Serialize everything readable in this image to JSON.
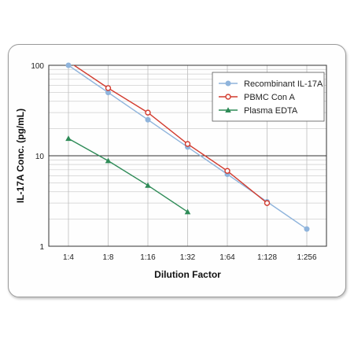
{
  "chart_data": {
    "type": "line",
    "title": "",
    "xlabel": "Dilution Factor",
    "ylabel": "IL-17A Conc. (pg/mL)",
    "x_scale": "log2",
    "y_scale": "log10",
    "categories": [
      "1:4",
      "1:8",
      "1:16",
      "1:32",
      "1:64",
      "1:128",
      "1:256"
    ],
    "yticks": [
      "1",
      "10",
      "100"
    ],
    "ylim": [
      1,
      100
    ],
    "grid": true,
    "legend_position": "top-right",
    "series": [
      {
        "name": "Recombinant IL-17A",
        "color": "#8fb4dc",
        "marker": "circle-filled",
        "points": [
          [
            4,
            100
          ],
          [
            8,
            50
          ],
          [
            16,
            25
          ],
          [
            32,
            12.5
          ],
          [
            64,
            6.25
          ],
          [
            128,
            3.1
          ],
          [
            256,
            1.55
          ]
        ]
      },
      {
        "name": "PBMC Con A",
        "color": "#d23b2e",
        "marker": "circle-open",
        "points": [
          [
            4,
            110
          ],
          [
            8,
            56
          ],
          [
            16,
            30
          ],
          [
            32,
            13.5
          ],
          [
            64,
            6.8
          ],
          [
            128,
            3.0
          ]
        ]
      },
      {
        "name": "Plasma EDTA",
        "color": "#2e8b57",
        "marker": "triangle",
        "points": [
          [
            4,
            15.5
          ],
          [
            8,
            8.8
          ],
          [
            16,
            4.7
          ],
          [
            32,
            2.4
          ]
        ]
      }
    ]
  }
}
